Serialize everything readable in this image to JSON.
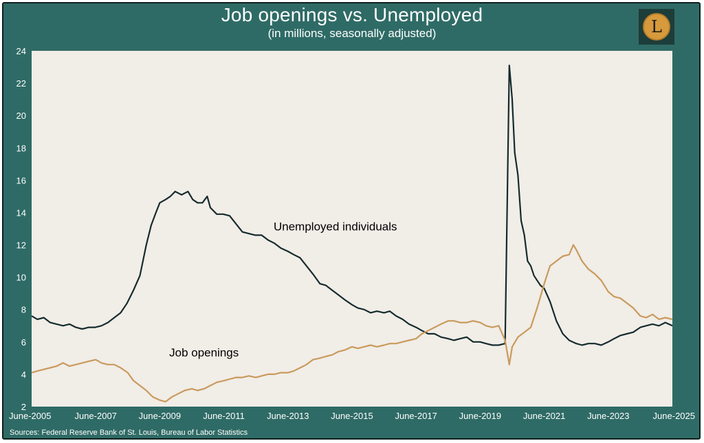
{
  "header": {
    "title": "Job openings vs. Unemployed",
    "subtitle": "(in millions, seasonally adjusted)"
  },
  "logo": {
    "letter": "L",
    "icon": "gold-coin-letter-l-logo"
  },
  "footer": {
    "source": "Sources: Federal Reserve Bank of St. Louis, Bureau of Labor Statistics"
  },
  "colors": {
    "frame": "#2f6b66",
    "plot_bg": "#f1ede7",
    "unemployed_line": "#152b2e",
    "openings_line": "#c99a5c",
    "text": "#ffffff"
  },
  "chart_data": {
    "type": "line",
    "title": "Job openings vs. Unemployed",
    "subtitle": "(in millions, seasonally adjusted)",
    "xlabel": "",
    "ylabel": "",
    "xlim": [
      2005.42,
      2025.42
    ],
    "ylim": [
      2,
      24
    ],
    "grid": false,
    "y_ticks": [
      "2",
      "4",
      "6",
      "8",
      "10",
      "12",
      "14",
      "16",
      "18",
      "20",
      "22",
      "24"
    ],
    "x_ticks": [
      {
        "label": "June-2005",
        "x": 2005.42
      },
      {
        "label": "June-2007",
        "x": 2007.42
      },
      {
        "label": "June-2009",
        "x": 2009.42
      },
      {
        "label": "June-2011",
        "x": 2011.42
      },
      {
        "label": "June-2013",
        "x": 2013.42
      },
      {
        "label": "June-2015",
        "x": 2015.42
      },
      {
        "label": "June-2017",
        "x": 2017.42
      },
      {
        "label": "June-2019",
        "x": 2019.42
      },
      {
        "label": "June-2021",
        "x": 2021.42
      },
      {
        "label": "June-2023",
        "x": 2023.42
      },
      {
        "label": "June-2025",
        "x": 2025.42
      }
    ],
    "annotations": [
      {
        "text": "Unemployed individuals",
        "series": "unemployed",
        "anchor": [
          2014.9,
          12.9
        ]
      },
      {
        "text": "Job openings",
        "series": "openings",
        "anchor": [
          2010.8,
          5.1
        ]
      }
    ],
    "series": [
      {
        "key": "unemployed",
        "points": [
          [
            2005.42,
            7.6
          ],
          [
            2005.6,
            7.4
          ],
          [
            2005.8,
            7.5
          ],
          [
            2006.0,
            7.2
          ],
          [
            2006.2,
            7.1
          ],
          [
            2006.4,
            7.0
          ],
          [
            2006.6,
            7.1
          ],
          [
            2006.8,
            6.9
          ],
          [
            2007.0,
            6.8
          ],
          [
            2007.2,
            6.9
          ],
          [
            2007.4,
            6.9
          ],
          [
            2007.6,
            7.0
          ],
          [
            2007.8,
            7.2
          ],
          [
            2008.0,
            7.5
          ],
          [
            2008.2,
            7.8
          ],
          [
            2008.4,
            8.4
          ],
          [
            2008.6,
            9.2
          ],
          [
            2008.8,
            10.1
          ],
          [
            2009.0,
            12.0
          ],
          [
            2009.15,
            13.2
          ],
          [
            2009.3,
            14.0
          ],
          [
            2009.42,
            14.6
          ],
          [
            2009.6,
            14.8
          ],
          [
            2009.75,
            15.0
          ],
          [
            2009.9,
            15.3
          ],
          [
            2010.1,
            15.1
          ],
          [
            2010.3,
            15.3
          ],
          [
            2010.45,
            14.8
          ],
          [
            2010.6,
            14.6
          ],
          [
            2010.75,
            14.6
          ],
          [
            2010.9,
            15.0
          ],
          [
            2011.0,
            14.3
          ],
          [
            2011.2,
            13.9
          ],
          [
            2011.4,
            13.9
          ],
          [
            2011.6,
            13.8
          ],
          [
            2011.8,
            13.3
          ],
          [
            2012.0,
            12.8
          ],
          [
            2012.2,
            12.7
          ],
          [
            2012.4,
            12.6
          ],
          [
            2012.6,
            12.6
          ],
          [
            2012.8,
            12.3
          ],
          [
            2013.0,
            12.1
          ],
          [
            2013.2,
            11.8
          ],
          [
            2013.42,
            11.6
          ],
          [
            2013.6,
            11.4
          ],
          [
            2013.8,
            11.2
          ],
          [
            2014.0,
            10.7
          ],
          [
            2014.2,
            10.2
          ],
          [
            2014.42,
            9.6
          ],
          [
            2014.6,
            9.5
          ],
          [
            2014.8,
            9.2
          ],
          [
            2015.0,
            8.9
          ],
          [
            2015.2,
            8.6
          ],
          [
            2015.42,
            8.3
          ],
          [
            2015.6,
            8.1
          ],
          [
            2015.8,
            8.0
          ],
          [
            2016.0,
            7.8
          ],
          [
            2016.2,
            7.9
          ],
          [
            2016.42,
            7.8
          ],
          [
            2016.6,
            7.9
          ],
          [
            2016.8,
            7.6
          ],
          [
            2017.0,
            7.4
          ],
          [
            2017.2,
            7.1
          ],
          [
            2017.42,
            6.9
          ],
          [
            2017.6,
            6.7
          ],
          [
            2017.8,
            6.5
          ],
          [
            2018.0,
            6.5
          ],
          [
            2018.2,
            6.3
          ],
          [
            2018.42,
            6.2
          ],
          [
            2018.6,
            6.1
          ],
          [
            2018.8,
            6.2
          ],
          [
            2019.0,
            6.3
          ],
          [
            2019.2,
            6.0
          ],
          [
            2019.42,
            6.0
          ],
          [
            2019.6,
            5.9
          ],
          [
            2019.8,
            5.8
          ],
          [
            2020.0,
            5.8
          ],
          [
            2020.2,
            5.9
          ],
          [
            2020.33,
            23.1
          ],
          [
            2020.42,
            21.0
          ],
          [
            2020.5,
            17.7
          ],
          [
            2020.6,
            16.3
          ],
          [
            2020.7,
            13.5
          ],
          [
            2020.8,
            12.6
          ],
          [
            2020.9,
            11.0
          ],
          [
            2021.0,
            10.7
          ],
          [
            2021.1,
            10.1
          ],
          [
            2021.2,
            9.8
          ],
          [
            2021.3,
            9.5
          ],
          [
            2021.42,
            9.3
          ],
          [
            2021.6,
            8.5
          ],
          [
            2021.8,
            7.3
          ],
          [
            2022.0,
            6.5
          ],
          [
            2022.2,
            6.1
          ],
          [
            2022.42,
            5.9
          ],
          [
            2022.6,
            5.8
          ],
          [
            2022.8,
            5.9
          ],
          [
            2023.0,
            5.9
          ],
          [
            2023.2,
            5.8
          ],
          [
            2023.42,
            6.0
          ],
          [
            2023.6,
            6.2
          ],
          [
            2023.8,
            6.4
          ],
          [
            2024.0,
            6.5
          ],
          [
            2024.2,
            6.6
          ],
          [
            2024.42,
            6.9
          ],
          [
            2024.6,
            7.0
          ],
          [
            2024.8,
            7.1
          ],
          [
            2025.0,
            7.0
          ],
          [
            2025.2,
            7.2
          ],
          [
            2025.42,
            7.0
          ]
        ]
      },
      {
        "key": "openings",
        "points": [
          [
            2005.42,
            4.1
          ],
          [
            2005.6,
            4.2
          ],
          [
            2005.8,
            4.3
          ],
          [
            2006.0,
            4.4
          ],
          [
            2006.2,
            4.5
          ],
          [
            2006.4,
            4.7
          ],
          [
            2006.6,
            4.5
          ],
          [
            2006.8,
            4.6
          ],
          [
            2007.0,
            4.7
          ],
          [
            2007.2,
            4.8
          ],
          [
            2007.42,
            4.9
          ],
          [
            2007.6,
            4.7
          ],
          [
            2007.8,
            4.6
          ],
          [
            2008.0,
            4.6
          ],
          [
            2008.2,
            4.4
          ],
          [
            2008.42,
            4.1
          ],
          [
            2008.6,
            3.6
          ],
          [
            2008.8,
            3.3
          ],
          [
            2009.0,
            3.0
          ],
          [
            2009.2,
            2.6
          ],
          [
            2009.42,
            2.4
          ],
          [
            2009.6,
            2.3
          ],
          [
            2009.8,
            2.6
          ],
          [
            2010.0,
            2.8
          ],
          [
            2010.2,
            3.0
          ],
          [
            2010.42,
            3.1
          ],
          [
            2010.6,
            3.0
          ],
          [
            2010.8,
            3.1
          ],
          [
            2011.0,
            3.3
          ],
          [
            2011.2,
            3.5
          ],
          [
            2011.42,
            3.6
          ],
          [
            2011.6,
            3.7
          ],
          [
            2011.8,
            3.8
          ],
          [
            2012.0,
            3.8
          ],
          [
            2012.2,
            3.9
          ],
          [
            2012.42,
            3.8
          ],
          [
            2012.6,
            3.9
          ],
          [
            2012.8,
            4.0
          ],
          [
            2013.0,
            4.0
          ],
          [
            2013.2,
            4.1
          ],
          [
            2013.42,
            4.1
          ],
          [
            2013.6,
            4.2
          ],
          [
            2013.8,
            4.4
          ],
          [
            2014.0,
            4.6
          ],
          [
            2014.2,
            4.9
          ],
          [
            2014.42,
            5.0
          ],
          [
            2014.6,
            5.1
          ],
          [
            2014.8,
            5.2
          ],
          [
            2015.0,
            5.4
          ],
          [
            2015.2,
            5.5
          ],
          [
            2015.42,
            5.7
          ],
          [
            2015.6,
            5.6
          ],
          [
            2015.8,
            5.7
          ],
          [
            2016.0,
            5.8
          ],
          [
            2016.2,
            5.7
          ],
          [
            2016.42,
            5.8
          ],
          [
            2016.6,
            5.9
          ],
          [
            2016.8,
            5.9
          ],
          [
            2017.0,
            6.0
          ],
          [
            2017.2,
            6.1
          ],
          [
            2017.42,
            6.2
          ],
          [
            2017.6,
            6.5
          ],
          [
            2017.8,
            6.7
          ],
          [
            2018.0,
            6.9
          ],
          [
            2018.2,
            7.1
          ],
          [
            2018.42,
            7.3
          ],
          [
            2018.6,
            7.3
          ],
          [
            2018.8,
            7.2
          ],
          [
            2019.0,
            7.2
          ],
          [
            2019.2,
            7.3
          ],
          [
            2019.42,
            7.2
          ],
          [
            2019.6,
            7.0
          ],
          [
            2019.8,
            6.9
          ],
          [
            2020.0,
            7.0
          ],
          [
            2020.2,
            6.1
          ],
          [
            2020.33,
            4.6
          ],
          [
            2020.42,
            5.7
          ],
          [
            2020.6,
            6.3
          ],
          [
            2020.8,
            6.6
          ],
          [
            2021.0,
            6.9
          ],
          [
            2021.2,
            8.1
          ],
          [
            2021.42,
            9.6
          ],
          [
            2021.6,
            10.7
          ],
          [
            2021.8,
            11.0
          ],
          [
            2022.0,
            11.3
          ],
          [
            2022.2,
            11.4
          ],
          [
            2022.33,
            12.0
          ],
          [
            2022.42,
            11.7
          ],
          [
            2022.6,
            11.0
          ],
          [
            2022.8,
            10.5
          ],
          [
            2023.0,
            10.2
          ],
          [
            2023.2,
            9.8
          ],
          [
            2023.42,
            9.1
          ],
          [
            2023.6,
            8.8
          ],
          [
            2023.8,
            8.7
          ],
          [
            2024.0,
            8.4
          ],
          [
            2024.2,
            8.1
          ],
          [
            2024.42,
            7.6
          ],
          [
            2024.6,
            7.5
          ],
          [
            2024.8,
            7.7
          ],
          [
            2025.0,
            7.4
          ],
          [
            2025.2,
            7.5
          ],
          [
            2025.42,
            7.4
          ]
        ]
      }
    ]
  }
}
